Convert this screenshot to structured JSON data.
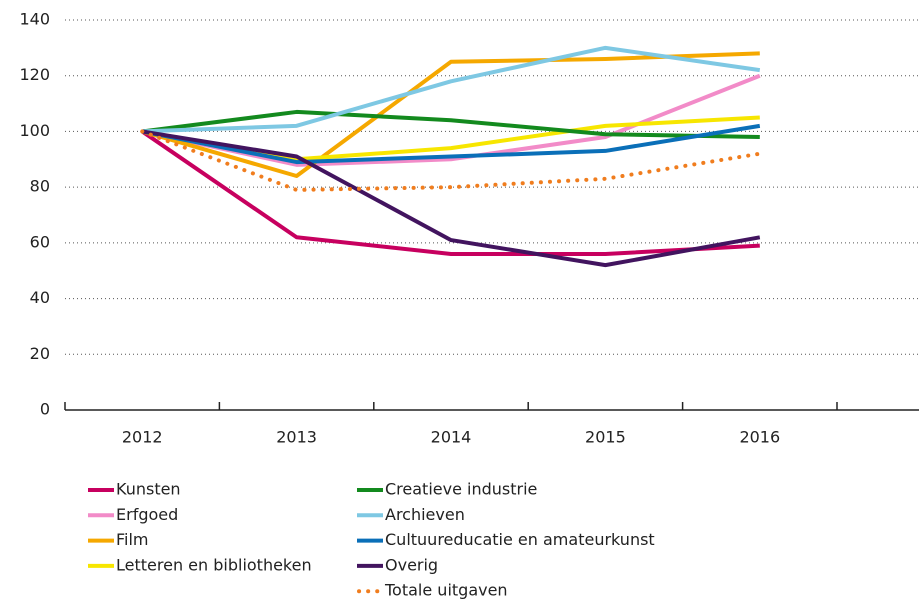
{
  "chart_data": {
    "type": "line",
    "categories": [
      "2012",
      "2013",
      "2014",
      "2015",
      "2016"
    ],
    "ylim": [
      0,
      140
    ],
    "yticks": [
      0,
      20,
      40,
      60,
      80,
      100,
      120,
      140
    ],
    "grid": true,
    "series": [
      {
        "name": "Kunsten",
        "color": "#c7005f",
        "values": [
          100,
          62,
          56,
          56,
          59
        ]
      },
      {
        "name": "Erfgoed",
        "color": "#f28bc8",
        "values": [
          100,
          88,
          90,
          98,
          120
        ]
      },
      {
        "name": "Film",
        "color": "#f5a800",
        "values": [
          100,
          84,
          125,
          126,
          128
        ]
      },
      {
        "name": "Letteren en bibliotheken",
        "color": "#f7e600",
        "values": [
          100,
          90,
          94,
          102,
          105
        ]
      },
      {
        "name": "Creatieve industrie",
        "color": "#138a1e",
        "values": [
          100,
          107,
          104,
          99,
          98
        ]
      },
      {
        "name": "Archieven",
        "color": "#7ec8e3",
        "values": [
          100,
          102,
          118,
          130,
          122
        ]
      },
      {
        "name": "Cultuureducatie en amateurkunst",
        "color": "#0a6fb8",
        "values": [
          100,
          89,
          91,
          93,
          102
        ]
      },
      {
        "name": "Overig",
        "color": "#42145f",
        "values": [
          100,
          91,
          61,
          52,
          62
        ]
      },
      {
        "name": "Totale uitgaven",
        "color": "#f07d1e",
        "style": "dotted",
        "values": [
          100,
          79,
          80,
          83,
          92
        ]
      }
    ]
  }
}
